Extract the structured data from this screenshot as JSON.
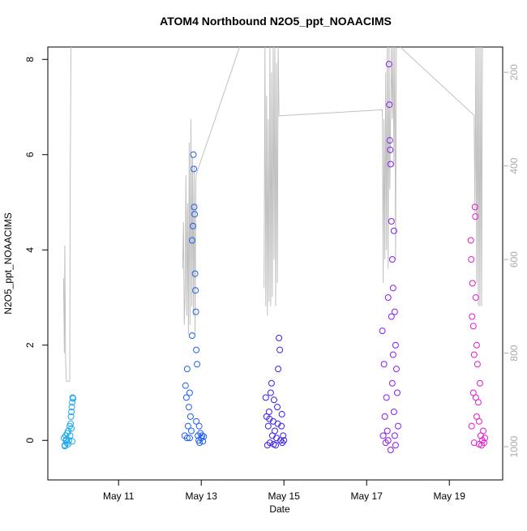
{
  "chart_data": {
    "type": "scatter",
    "title": "ATOM4 Northbound N2O5_ppt_NOAACIMS",
    "xlabel": "Date",
    "ylabel": "N2O5_ppt_NOAACIMS",
    "xlim": [
      9.29,
      20.29
    ],
    "xticks": [
      {
        "value": 11,
        "label": "May 11"
      },
      {
        "value": 13,
        "label": "May 13"
      },
      {
        "value": 15,
        "label": "May 15"
      },
      {
        "value": 17,
        "label": "May 17"
      },
      {
        "value": 19,
        "label": "May 19"
      }
    ],
    "ylim": [
      -0.83,
      8.26
    ],
    "yticks": [
      0,
      2,
      4,
      6,
      8
    ],
    "y2lim": [
      1071,
      146
    ],
    "y2ticks": [
      200,
      400,
      600,
      800,
      1000
    ],
    "series": [
      {
        "color": "#1ea8f0",
        "x": [
          9.68,
          9.7,
          9.72,
          9.73,
          9.75,
          9.76,
          9.78,
          9.8,
          9.82,
          9.84,
          9.85,
          9.86,
          9.87,
          9.88,
          9.89,
          9.9,
          9.7,
          9.74,
          9.78,
          9.83,
          9.86,
          9.88
        ],
        "values": [
          0.05,
          -0.1,
          0.1,
          0.0,
          -0.05,
          0.15,
          0.2,
          0.0,
          0.3,
          0.35,
          0.5,
          0.6,
          0.7,
          0.8,
          0.9,
          0.88,
          -0.12,
          0.02,
          -0.08,
          0.1,
          0.25,
          -0.02
        ]
      },
      {
        "color": "#2060f0",
        "x": [
          12.6,
          12.62,
          12.64,
          12.66,
          12.68,
          12.7,
          12.72,
          12.74,
          12.76,
          12.78,
          12.8,
          12.81,
          12.82,
          12.83,
          12.84,
          12.85,
          12.86,
          12.87,
          12.88,
          12.9,
          12.92,
          12.94,
          12.96,
          12.98,
          13.0,
          13.02,
          13.04,
          12.78,
          12.66,
          12.72,
          12.88,
          12.95,
          13.06
        ],
        "values": [
          0.1,
          1.15,
          0.9,
          0.05,
          0.3,
          0.7,
          1.0,
          0.5,
          0.2,
          2.2,
          4.5,
          6.0,
          5.7,
          4.9,
          4.75,
          3.5,
          3.15,
          2.7,
          1.9,
          1.6,
          0.1,
          0.0,
          -0.05,
          0.15,
          0.05,
          0.1,
          -0.02,
          4.2,
          1.5,
          0.05,
          0.4,
          0.3,
          0.08
        ]
      },
      {
        "color": "#3a20f0",
        "x": [
          14.56,
          14.58,
          14.6,
          14.62,
          14.64,
          14.66,
          14.68,
          14.7,
          14.72,
          14.74,
          14.76,
          14.78,
          14.8,
          14.82,
          14.84,
          14.86,
          14.88,
          14.9,
          14.92,
          14.94,
          14.96,
          14.98,
          15.0,
          14.65,
          14.75,
          14.85,
          14.95
        ],
        "values": [
          0.9,
          0.5,
          -0.1,
          0.3,
          0.6,
          -0.05,
          1.0,
          1.2,
          0.1,
          0.4,
          0.85,
          0.2,
          -0.1,
          0.05,
          0.7,
          1.5,
          2.15,
          1.9,
          0.0,
          0.3,
          -0.05,
          0.1,
          0.0,
          0.45,
          -0.08,
          0.35,
          0.55
        ]
      },
      {
        "color": "#8a1ef0",
        "x": [
          17.38,
          17.4,
          17.42,
          17.44,
          17.46,
          17.48,
          17.5,
          17.52,
          17.54,
          17.55,
          17.56,
          17.57,
          17.58,
          17.6,
          17.62,
          17.64,
          17.66,
          17.68,
          17.7,
          17.72,
          17.74,
          17.76,
          17.58,
          17.62,
          17.66,
          17.7,
          17.52,
          17.6,
          17.64,
          17.68
        ],
        "values": [
          2.3,
          0.1,
          1.6,
          0.5,
          -0.05,
          0.9,
          0.2,
          0.0,
          7.9,
          7.05,
          6.3,
          6.1,
          5.8,
          4.6,
          3.8,
          3.2,
          4.4,
          2.7,
          2.0,
          1.5,
          1.0,
          0.3,
          -0.2,
          1.2,
          0.6,
          -0.1,
          3.0,
          2.6,
          1.8,
          0.1
        ]
      },
      {
        "color": "#e01ed0",
        "x": [
          19.52,
          19.53,
          19.55,
          19.56,
          19.58,
          19.6,
          19.62,
          19.63,
          19.64,
          19.66,
          19.68,
          19.7,
          19.72,
          19.74,
          19.76,
          19.78,
          19.8,
          19.82,
          19.84,
          19.86,
          19.54,
          19.6,
          19.66,
          19.72,
          19.58,
          19.64
        ],
        "values": [
          4.2,
          3.8,
          2.6,
          3.3,
          2.4,
          1.8,
          4.9,
          4.7,
          3.0,
          2.0,
          1.6,
          0.8,
          0.4,
          1.2,
          0.1,
          -0.1,
          0.0,
          0.2,
          -0.05,
          0.05,
          0.3,
          -0.05,
          0.5,
          -0.08,
          1.0,
          0.9
        ]
      },
      {
        "type": "line",
        "axis": "y2",
        "color": "#c0c0c0",
        "x": [
          9.67,
          9.69,
          9.7,
          9.72,
          9.74,
          9.82,
          9.83,
          9.85,
          null,
          12.55,
          12.57,
          12.59,
          12.61,
          12.63,
          12.65,
          12.67,
          12.69,
          12.71,
          12.73,
          12.75,
          12.77,
          12.79,
          12.81,
          12.83,
          12.85,
          12.87,
          12.88,
          13.95,
          null,
          14.52,
          14.54,
          14.56,
          14.58,
          14.6,
          14.62,
          14.64,
          14.66,
          14.68,
          14.7,
          14.72,
          14.74,
          14.76,
          14.78,
          14.8,
          14.82,
          14.84,
          14.86,
          14.88,
          17.38,
          17.4,
          17.42,
          17.44,
          17.46,
          17.48,
          17.5,
          17.52,
          17.54,
          17.56,
          17.6,
          17.62,
          17.64,
          17.66,
          17.68,
          17.7,
          17.72,
          17.74,
          19.6,
          19.62,
          19.64,
          19.66,
          19.68,
          19.7,
          19.72,
          19.74,
          19.76,
          19.78,
          19.8
        ],
        "values": [
          640,
          800,
          570,
          820,
          860,
          860,
          450,
          140,
          null,
          620,
          520,
          740,
          680,
          420,
          720,
          480,
          760,
          350,
          740,
          300,
          700,
          380,
          720,
          400,
          760,
          430,
          418,
          140,
          null,
          660,
          140,
          700,
          250,
          720,
          300,
          690,
          140,
          700,
          200,
          680,
          140,
          600,
          140,
          700,
          180,
          650,
          140,
          293,
          280,
          650,
          300,
          600,
          200,
          580,
          140,
          620,
          140,
          450,
          140,
          300,
          140,
          400,
          140,
          600,
          140,
          140,
          292,
          500,
          140,
          650,
          140,
          700,
          140,
          700,
          140,
          700,
          140
        ]
      }
    ]
  }
}
